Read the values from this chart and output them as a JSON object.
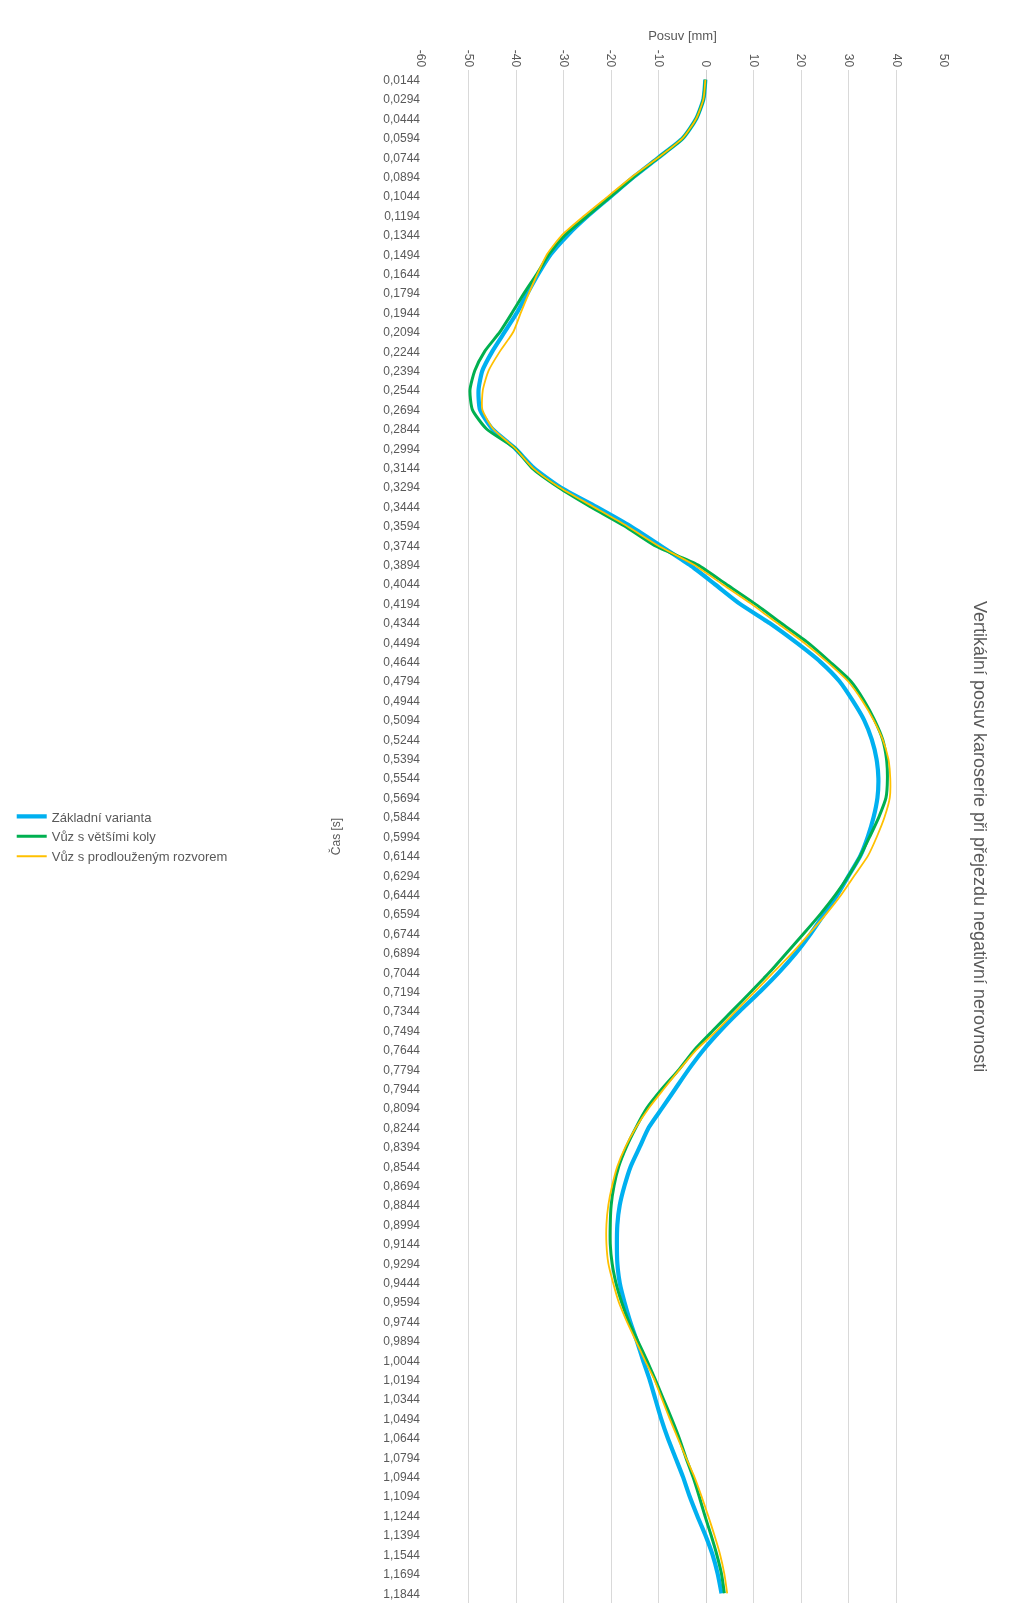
{
  "chart_data": {
    "type": "line",
    "title": "Vertikální posuv karoserie při přejezdu negativní nerovnosti",
    "xlabel": "Posuv [mm]",
    "ylabel": "Čas [s]",
    "orientation": "horizontal",
    "categories": [
      "0,0144",
      "0,0294",
      "0,0444",
      "0,0594",
      "0,0744",
      "0,0894",
      "0,1044",
      "0,1194",
      "0,1344",
      "0,1494",
      "0,1644",
      "0,1794",
      "0,1944",
      "0,2094",
      "0,2244",
      "0,2394",
      "0,2544",
      "0,2694",
      "0,2844",
      "0,2994",
      "0,3144",
      "0,3294",
      "0,3444",
      "0,3594",
      "0,3744",
      "0,3894",
      "0,4044",
      "0,4194",
      "0,4344",
      "0,4494",
      "0,4644",
      "0,4794",
      "0,4944",
      "0,5094",
      "0,5244",
      "0,5394",
      "0,5544",
      "0,5694",
      "0,5844",
      "0,5994",
      "0,6144",
      "0,6294",
      "0,6444",
      "0,6594",
      "0,6744",
      "0,6894",
      "0,7044",
      "0,7194",
      "0,7344",
      "0,7494",
      "0,7644",
      "0,7794",
      "0,7944",
      "0,8094",
      "0,8244",
      "0,8394",
      "0,8544",
      "0,8694",
      "0,8844",
      "0,8994",
      "0,9144",
      "0,9294",
      "0,9444",
      "0,9594",
      "0,9744",
      "0,9894",
      "1,0044",
      "1,0194",
      "1,0344",
      "1,0494",
      "1,0644",
      "1,0794",
      "1,0944",
      "1,1094",
      "1,1244",
      "1,1394",
      "1,1544",
      "1,1694",
      "1,1844"
    ],
    "series": [
      {
        "name": "Základní varianta",
        "color": "#00b0f0",
        "values": [
          -0.2,
          -0.6,
          -2.1,
          -4.9,
          -10,
          -15.2,
          -20,
          -24.8,
          -29.1,
          -32.7,
          -35.3,
          -37.6,
          -39.8,
          -42.4,
          -45,
          -47.1,
          -47.9,
          -47.6,
          -45,
          -40.2,
          -36.3,
          -30.7,
          -23.2,
          -16,
          -9.7,
          -3.5,
          1.8,
          7,
          13.3,
          18.9,
          24,
          28,
          30.8,
          33.2,
          34.8,
          35.8,
          36.2,
          36,
          35.2,
          34,
          32.4,
          30,
          27.6,
          24.8,
          22,
          18.9,
          15.3,
          11.3,
          7,
          3,
          -0.6,
          -3.7,
          -6.5,
          -9.3,
          -12.1,
          -14,
          -15.9,
          -17.2,
          -18.2,
          -18.7,
          -18.8,
          -18.7,
          -18.2,
          -17.2,
          -16,
          -14.6,
          -13.3,
          -11.9,
          -10.7,
          -9.5,
          -8.1,
          -6.5,
          -4.9,
          -3.5,
          -1.9,
          -0.2,
          1.3,
          2.4,
          3.2
        ]
      },
      {
        "name": "Vůz s většími koly",
        "color": "#00b050",
        "values": [
          -0.2,
          -0.6,
          -2.1,
          -4.9,
          -10,
          -15.2,
          -20,
          -24.9,
          -29.7,
          -33.1,
          -35.6,
          -38.3,
          -40.8,
          -43.4,
          -46.6,
          -48.7,
          -49.7,
          -49.2,
          -46.2,
          -40.2,
          -36.7,
          -31.1,
          -24.4,
          -17.2,
          -10.9,
          -1.8,
          4.2,
          10.2,
          15.7,
          21.3,
          26,
          30.4,
          33.2,
          35.4,
          37.1,
          37.9,
          38.1,
          37.8,
          36.3,
          34.4,
          32.4,
          30,
          27.2,
          24,
          20.5,
          16.9,
          13.3,
          9.4,
          5.4,
          1.4,
          -2.5,
          -5.7,
          -9.3,
          -12.5,
          -14.8,
          -16.8,
          -18.4,
          -19.4,
          -20,
          -20.2,
          -20.2,
          -19.8,
          -19,
          -17.8,
          -16.3,
          -14.4,
          -12.5,
          -10.7,
          -9,
          -7.3,
          -5.7,
          -4.3,
          -2.8,
          -1.5,
          -0.3,
          1,
          2.2,
          3.2,
          3.8
        ]
      },
      {
        "name": "Vůz s prodlouženým rozvorem",
        "color": "#ffc000",
        "values": [
          -0.2,
          -0.6,
          -2.1,
          -4.9,
          -10,
          -15.6,
          -20.6,
          -25.6,
          -30.3,
          -33.5,
          -35.5,
          -37.3,
          -39,
          -40.6,
          -43.4,
          -45.8,
          -47,
          -47.1,
          -44.8,
          -40.2,
          -36.5,
          -30.9,
          -23.8,
          -16.7,
          -10.2,
          -2.6,
          3.4,
          9.4,
          14.9,
          20.5,
          25.4,
          29.8,
          32.8,
          35.2,
          37.1,
          38.3,
          38.7,
          38.6,
          37.5,
          35.9,
          34,
          31.2,
          28.4,
          25.2,
          21.7,
          18.1,
          14.1,
          10.2,
          6.2,
          2.2,
          -2.1,
          -5.6,
          -8.9,
          -12.1,
          -14.8,
          -17,
          -18.7,
          -19.8,
          -20.6,
          -21,
          -21,
          -20.6,
          -19.6,
          -18.4,
          -16.7,
          -14.8,
          -12.9,
          -10.9,
          -9.3,
          -7.7,
          -6,
          -4.3,
          -2.5,
          -1,
          0.4,
          1.7,
          2.9,
          3.8,
          4.4
        ]
      }
    ],
    "xlim": [
      -60,
      50
    ],
    "xticks": [
      -60,
      -50,
      -40,
      -30,
      -20,
      -10,
      0,
      10,
      20,
      30,
      40,
      50
    ],
    "grid": "x",
    "legend": "left",
    "line_style": "solid",
    "marker": "none"
  }
}
